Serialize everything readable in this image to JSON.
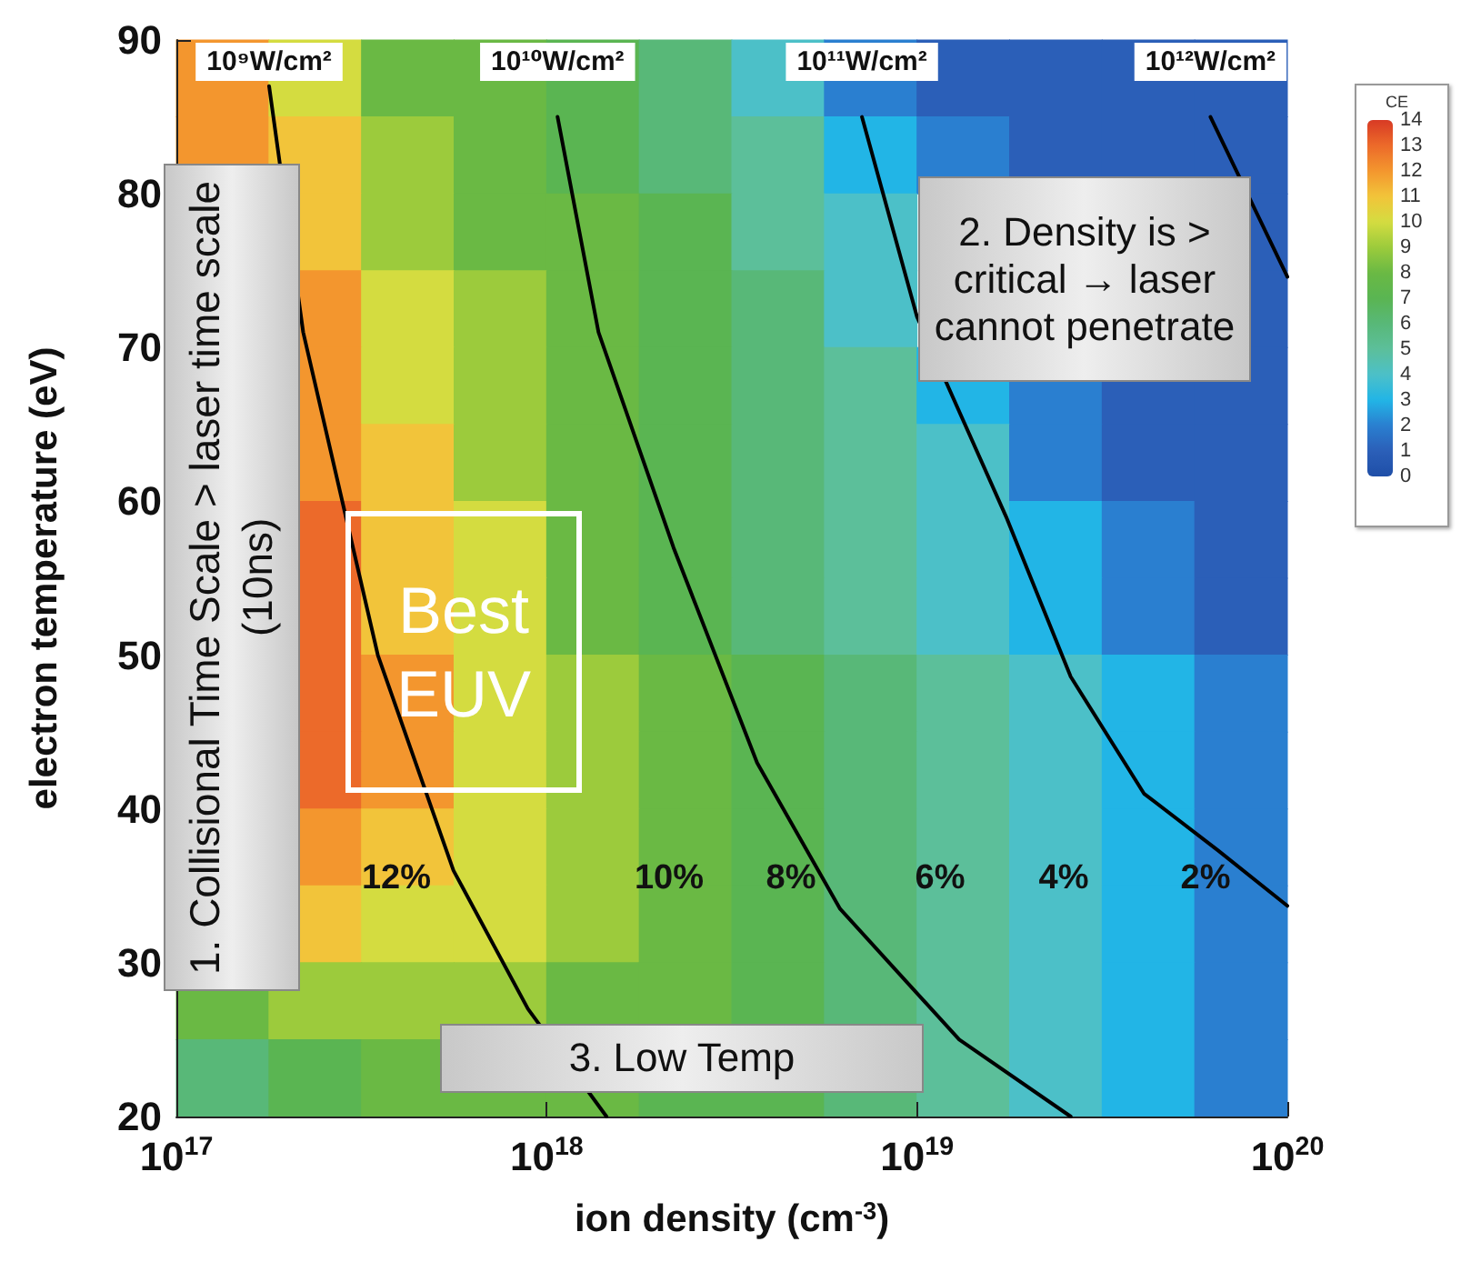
{
  "chart_data": [
    {
      "type": "heatmap",
      "clabel": "CE",
      "tick_labels": false,
      "categories": [
        null,
        null,
        null,
        null,
        null,
        null,
        null,
        null,
        null,
        null,
        null,
        null
      ],
      "y_categories": [
        null,
        null,
        null,
        null,
        null,
        null,
        null,
        null,
        null,
        null,
        null,
        null,
        null,
        null
      ],
      "cells": [
        [
          12,
          10,
          8,
          8,
          7,
          6,
          4,
          2,
          1,
          1,
          1,
          1
        ],
        [
          12,
          11,
          9,
          8,
          7,
          6,
          5,
          3,
          2,
          1,
          1,
          1
        ],
        [
          null,
          11,
          9,
          8,
          8,
          7,
          5,
          4,
          null,
          null,
          null,
          1
        ],
        [
          null,
          12,
          10,
          9,
          8,
          7,
          6,
          4,
          null,
          null,
          null,
          1
        ],
        [
          null,
          12,
          10,
          9,
          8,
          7,
          6,
          5,
          3,
          2,
          1,
          1
        ],
        [
          null,
          12,
          11,
          9,
          8,
          7,
          6,
          5,
          4,
          2,
          1,
          1
        ],
        [
          null,
          13,
          11,
          10,
          8,
          7,
          6,
          5,
          4,
          3,
          2,
          1
        ],
        [
          null,
          13,
          11,
          10,
          8,
          7,
          6,
          5,
          4,
          3,
          2,
          1
        ],
        [
          null,
          13,
          12,
          10,
          9,
          8,
          7,
          6,
          5,
          4,
          3,
          2
        ],
        [
          null,
          13,
          12,
          10,
          9,
          8,
          7,
          6,
          5,
          4,
          3,
          2
        ],
        [
          null,
          12,
          11,
          10,
          9,
          8,
          7,
          6,
          5,
          4,
          3,
          2
        ],
        [
          null,
          11,
          10,
          10,
          9,
          8,
          7,
          6,
          5,
          4,
          3,
          2
        ],
        [
          8,
          9,
          9,
          9,
          8,
          8,
          7,
          6,
          5,
          4,
          3,
          2
        ],
        [
          6,
          7,
          8,
          8,
          8,
          7,
          7,
          6,
          5,
          4,
          3,
          2
        ]
      ],
      "clim": [
        0,
        14
      ],
      "cticks": [
        0,
        1,
        2,
        3,
        4,
        5,
        6,
        7,
        8,
        9,
        10,
        11,
        12,
        13,
        14
      ],
      "colors": [
        "#1f4fa8",
        "#2b5fb8",
        "#2a7fd0",
        "#22b5e6",
        "#4cc0c8",
        "#5cbf9a",
        "#58b878",
        "#5ab552",
        "#6ab944",
        "#9ccb3c",
        "#d4dc40",
        "#f2c43a",
        "#f3962e",
        "#ec6a2a",
        "#d83a24"
      ]
    },
    {
      "type": "line",
      "xlabel": "ion density (cm$^{-3}$)",
      "ylabel": "electron temperature (eV)",
      "log": "x",
      "xlim": [
        1e+17,
        1e+20
      ],
      "xticks": [
        {
          "value": 1e+17,
          "label": "10$^{17}$"
        },
        {
          "value": 1e+18,
          "label": "10$^{18}$"
        },
        {
          "value": 1e+19,
          "label": "10$^{19}$"
        },
        {
          "value": 1e+20,
          "label": "10$^{20}$"
        }
      ],
      "ylim": [
        20,
        90
      ],
      "yticks": [
        20,
        30,
        40,
        50,
        60,
        70,
        80,
        90
      ],
      "series": [
        {
          "name": "10⁹W/cm²",
          "color": "#000000",
          "x": [
            1.78e+17,
            2.2e+17,
            3.5e+17,
            5.6e+17,
            8.9e+17,
            1.45e+18
          ],
          "values": [
            87,
            71,
            50,
            36,
            27,
            20
          ]
        },
        {
          "name": "10¹⁰W/cm²",
          "color": "#000000",
          "x": [
            1.07e+18,
            1.38e+18,
            2.2e+18,
            3.7e+18,
            6.2e+18,
            1.3e+19,
            2.6e+19
          ],
          "values": [
            85,
            71,
            57,
            43,
            33.5,
            25,
            20
          ]
        },
        {
          "name": "10¹¹W/cm²",
          "color": "#000000",
          "x": [
            7.1e+18,
            1e+19,
            1.74e+19,
            2.6e+19,
            4.1e+19,
            6.5e+19,
            1e+20
          ],
          "values": [
            85,
            72,
            59,
            48.6,
            41,
            37.3,
            33.7
          ]
        },
        {
          "name": "10¹²W/cm²",
          "color": "#000000",
          "x": [
            6.2e+19,
            1e+20
          ],
          "values": [
            85,
            74.6
          ]
        }
      ],
      "annotations": [
        "12%",
        "10%",
        "8%",
        "6%",
        "4%",
        "2%",
        "1. Collisional Time Scale > laser time scale (10ns)",
        "2. Density is > critical → laser cannot penetrate",
        "3. Low Temp",
        "Best EUV"
      ]
    }
  ]
}
